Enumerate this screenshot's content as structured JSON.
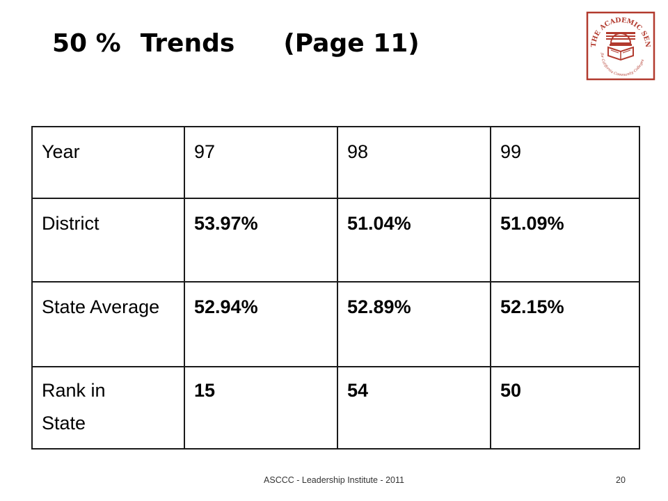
{
  "slide": {
    "title_part1": "50 %",
    "title_part2": "Trends",
    "title_part3": "(Page 11)"
  },
  "logo": {
    "text_top": "THE ACADEMIC SENATE",
    "text_bottom": "for California Community Colleges",
    "color": "#b23a2e"
  },
  "table": {
    "rows": [
      {
        "label": "Year",
        "values": [
          "97",
          "98",
          "99"
        ]
      },
      {
        "label": "District",
        "values": [
          "53.97%",
          "51.04%",
          "51.09%"
        ]
      },
      {
        "label": "State Average",
        "values": [
          "52.94%",
          "52.89%",
          "52.15%"
        ]
      },
      {
        "label_line1": "Rank in",
        "label_line2": "State",
        "values": [
          "15",
          "54",
          "50"
        ]
      }
    ]
  },
  "footer": {
    "text": "ASCCC - Leadership Institute - 2011",
    "page_number": "20"
  }
}
